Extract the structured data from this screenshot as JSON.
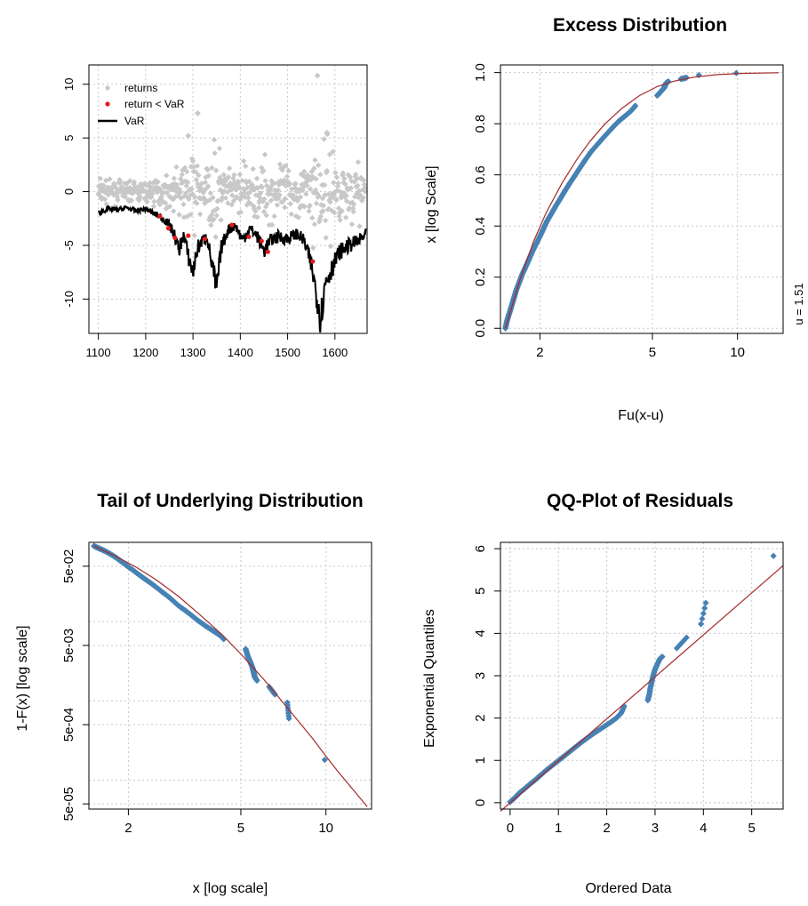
{
  "chart_data": [
    {
      "id": "var",
      "type": "scatter",
      "title": "",
      "xlabel": "",
      "ylabel": "",
      "xlim": [
        1080,
        1668
      ],
      "ylim": [
        -13.2,
        11.8
      ],
      "xticks": [
        "1100",
        "1200",
        "1300",
        "1400",
        "1500",
        "1600"
      ],
      "yticks": [
        "-10",
        "-5",
        "0",
        "5",
        "10"
      ],
      "grid": true,
      "legend": {
        "placement": "top-left",
        "entries": [
          "returns",
          "return < VaR",
          "VaR"
        ]
      },
      "colors": {
        "returns": "#c8c8c8",
        "breach": "#e41a1c",
        "var": "#000000"
      },
      "series": [
        {
          "name": "returns",
          "kind": "points",
          "n": 565,
          "x_range": [
            1100,
            1665
          ],
          "note_extremes": [
            [
              1563,
              10.8
            ],
            [
              1310,
              7.3
            ],
            [
              1583,
              5.5
            ],
            [
              1290,
              5.2
            ]
          ]
        },
        {
          "name": "return < VaR",
          "x": [
            1230,
            1248,
            1262,
            1290,
            1325,
            1382,
            1418,
            1445,
            1458,
            1553
          ],
          "y": [
            -2.3,
            -3.4,
            -4.3,
            -4.1,
            -4.4,
            -3.1,
            -4.2,
            -4.6,
            -5.6,
            -6.5
          ]
        },
        {
          "name": "VaR",
          "x": [
            1100,
            1120,
            1140,
            1160,
            1180,
            1200,
            1215,
            1230,
            1245,
            1260,
            1270,
            1280,
            1290,
            1300,
            1310,
            1320,
            1330,
            1340,
            1350,
            1360,
            1375,
            1390,
            1405,
            1420,
            1435,
            1450,
            1465,
            1480,
            1500,
            1520,
            1535,
            1550,
            1560,
            1570,
            1580,
            1595,
            1610,
            1630,
            1650,
            1665
          ],
          "y": [
            -2.0,
            -1.6,
            -1.7,
            -1.5,
            -1.8,
            -1.6,
            -2.0,
            -2.3,
            -2.8,
            -3.9,
            -5.5,
            -4.0,
            -6.0,
            -7.5,
            -5.2,
            -4.6,
            -4.2,
            -6.8,
            -9.0,
            -5.2,
            -3.5,
            -3.2,
            -4.5,
            -3.4,
            -4.1,
            -5.5,
            -4.5,
            -4.2,
            -4.4,
            -3.9,
            -4.6,
            -6.8,
            -9.3,
            -11.8,
            -8.4,
            -7.0,
            -5.6,
            -5.0,
            -4.6,
            -4.0
          ]
        }
      ]
    },
    {
      "id": "excess",
      "type": "scatter",
      "title": "Excess Distribution",
      "xlabel": "Fu(x-u)",
      "ylabel": "x [log Scale]",
      "x_scale": "log",
      "xlim": [
        1.45,
        14.5
      ],
      "ylim": [
        -0.02,
        1.03
      ],
      "xticks": [
        "2",
        "5",
        "10"
      ],
      "yticks": [
        "0.0",
        "0.2",
        "0.4",
        "0.6",
        "0.8",
        "1.0"
      ],
      "side_label": "u = 1.51",
      "grid": true,
      "colors": {
        "points": "#4682b4",
        "fit": "#a52a2a"
      },
      "series": [
        {
          "name": "",
          "kind": "points",
          "x": [
            1.51,
            1.53,
            1.56,
            1.59,
            1.62,
            1.65,
            1.69,
            1.73,
            1.78,
            1.83,
            1.88,
            1.94,
            2.0,
            2.06,
            2.12,
            2.2,
            2.28,
            2.37,
            2.46,
            2.56,
            2.67,
            2.78,
            2.9,
            3.03,
            3.2,
            3.38,
            3.58,
            3.8,
            4.0,
            4.2,
            4.35,
            5.2,
            5.3,
            5.4,
            5.5,
            5.55,
            5.6,
            5.7,
            6.3,
            6.6,
            7.3,
            9.9
          ],
          "y": [
            0.0,
            0.03,
            0.06,
            0.09,
            0.12,
            0.15,
            0.18,
            0.21,
            0.24,
            0.27,
            0.3,
            0.33,
            0.36,
            0.39,
            0.42,
            0.45,
            0.48,
            0.51,
            0.54,
            0.57,
            0.6,
            0.63,
            0.66,
            0.69,
            0.72,
            0.75,
            0.78,
            0.81,
            0.83,
            0.85,
            0.87,
            0.91,
            0.92,
            0.93,
            0.94,
            0.95,
            0.96,
            0.965,
            0.975,
            0.98,
            0.99,
            0.998
          ]
        },
        {
          "name": "",
          "kind": "line",
          "x": [
            1.51,
            1.7,
            1.9,
            2.1,
            2.4,
            2.7,
            3.0,
            3.4,
            3.9,
            4.5,
            5.2,
            6.0,
            7.0,
            8.5,
            10.5,
            14.0
          ],
          "y": [
            0.0,
            0.19,
            0.34,
            0.45,
            0.57,
            0.66,
            0.73,
            0.8,
            0.86,
            0.91,
            0.945,
            0.967,
            0.982,
            0.992,
            0.997,
            0.9995
          ]
        }
      ]
    },
    {
      "id": "tail",
      "type": "scatter",
      "title": "Tail of Underlying Distribution",
      "xlabel": "x [log scale]",
      "ylabel": "1-F(x) [log scale]",
      "x_scale": "log",
      "y_scale": "log",
      "xlim": [
        1.45,
        14.5
      ],
      "ylim": [
        4.3e-05,
        0.1
      ],
      "xticks": [
        "2",
        "5",
        "10"
      ],
      "yticks": [
        "5e-05",
        "5e-04",
        "5e-03",
        "5e-02"
      ],
      "grid": true,
      "colors": {
        "points": "#4682b4",
        "fit": "#a52a2a"
      },
      "series": [
        {
          "name": "",
          "kind": "points",
          "x": [
            1.51,
            1.55,
            1.6,
            1.66,
            1.73,
            1.8,
            1.88,
            1.97,
            2.07,
            2.18,
            2.3,
            2.45,
            2.62,
            2.8,
            3.0,
            3.25,
            3.5,
            3.75,
            4.0,
            4.2,
            4.35,
            5.2,
            5.3,
            5.4,
            5.5,
            5.55,
            5.6,
            5.7,
            6.3,
            6.6,
            7.3,
            7.4,
            9.9
          ],
          "y": [
            0.09,
            0.086,
            0.082,
            0.077,
            0.071,
            0.065,
            0.058,
            0.051,
            0.045,
            0.039,
            0.034,
            0.029,
            0.024,
            0.02,
            0.016,
            0.013,
            0.0105,
            0.0088,
            0.0076,
            0.0068,
            0.006,
            0.0045,
            0.0036,
            0.0031,
            0.0026,
            0.0023,
            0.002,
            0.0018,
            0.0015,
            0.0012,
            0.00095,
            0.0006,
            0.00018
          ]
        },
        {
          "name": "",
          "kind": "line",
          "x": [
            1.51,
            1.8,
            2.1,
            2.5,
            3.0,
            3.6,
            4.3,
            5.0,
            6.0,
            7.0,
            8.0,
            9.0,
            10.0,
            11.0,
            12.5,
            14.0
          ],
          "y": [
            0.09,
            0.067,
            0.05,
            0.034,
            0.021,
            0.012,
            0.0068,
            0.0039,
            0.0019,
            0.00098,
            0.00055,
            0.00033,
            0.0002,
            0.00013,
            7.5e-05,
            4.6e-05
          ]
        }
      ]
    },
    {
      "id": "qq",
      "type": "scatter",
      "title": "QQ-Plot of Residuals",
      "xlabel": "Ordered Data",
      "ylabel": "Exponential Quantiles",
      "xlim": [
        -0.2,
        5.65
      ],
      "ylim": [
        -0.15,
        6.15
      ],
      "xticks": [
        "0",
        "1",
        "2",
        "3",
        "4",
        "5"
      ],
      "yticks": [
        "0",
        "1",
        "2",
        "3",
        "4",
        "5",
        "6"
      ],
      "grid": true,
      "colors": {
        "points": "#4682b4",
        "fit": "#a52a2a"
      },
      "series": [
        {
          "name": "",
          "kind": "points",
          "x": [
            0.0,
            0.05,
            0.1,
            0.15,
            0.2,
            0.28,
            0.35,
            0.42,
            0.5,
            0.58,
            0.66,
            0.75,
            0.85,
            0.95,
            1.05,
            1.15,
            1.26,
            1.37,
            1.48,
            1.6,
            1.72,
            1.84,
            1.96,
            2.08,
            2.2,
            2.3,
            2.36,
            2.85,
            2.88,
            2.9,
            2.93,
            2.96,
            3.0,
            3.05,
            3.1,
            3.15,
            3.45,
            3.65,
            3.95,
            4.05,
            5.45
          ],
          "y": [
            0.02,
            0.07,
            0.12,
            0.18,
            0.24,
            0.31,
            0.38,
            0.45,
            0.52,
            0.6,
            0.68,
            0.77,
            0.86,
            0.95,
            1.04,
            1.13,
            1.23,
            1.33,
            1.43,
            1.53,
            1.63,
            1.72,
            1.81,
            1.9,
            2.0,
            2.12,
            2.28,
            2.42,
            2.55,
            2.7,
            2.85,
            3.0,
            3.15,
            3.28,
            3.4,
            3.45,
            3.65,
            3.9,
            4.22,
            4.72,
            5.83
          ]
        },
        {
          "name": "",
          "kind": "line",
          "x": [
            -0.2,
            5.65
          ],
          "y": [
            -0.2,
            5.6
          ]
        }
      ]
    }
  ]
}
